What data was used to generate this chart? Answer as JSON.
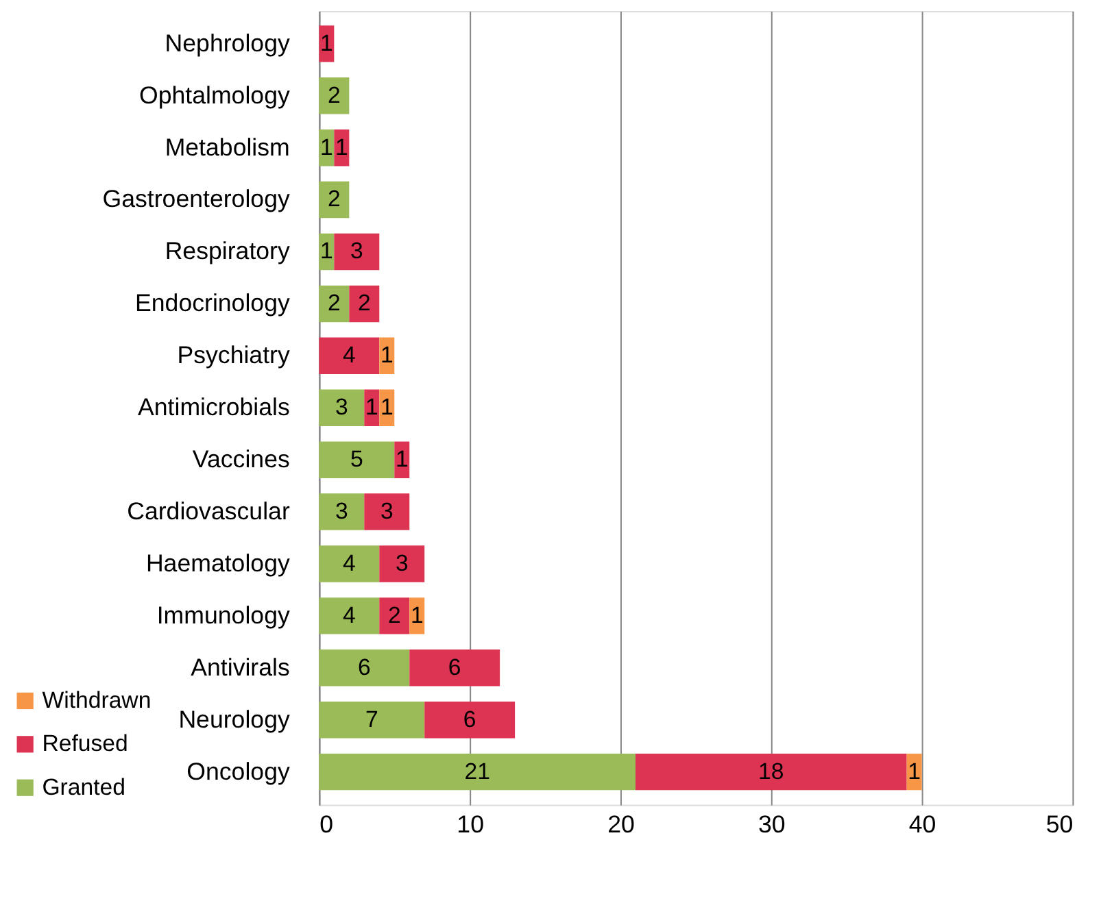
{
  "chart_data": {
    "type": "bar",
    "orientation": "horizontal",
    "stacked": true,
    "data_labels": true,
    "grid": "x",
    "legend": "bottom left",
    "categories": [
      "Nephrology",
      "Ophtalmology",
      "Metabolism",
      "Gastroenterology",
      "Respiratory",
      "Endocrinology",
      "Psychiatry",
      "Antimicrobials",
      "Vaccines",
      "Cardiovascular",
      "Haematology",
      "Immunology",
      "Antivirals",
      "Neurology",
      "Oncology"
    ],
    "series": [
      {
        "name": "Granted",
        "color": "#9bbb59",
        "values": [
          null,
          2,
          1,
          2,
          1,
          2,
          null,
          3,
          5,
          3,
          4,
          4,
          6,
          7,
          21
        ]
      },
      {
        "name": "Refused",
        "color": "#dc3452",
        "values": [
          1,
          null,
          1,
          null,
          3,
          2,
          4,
          1,
          1,
          3,
          3,
          2,
          6,
          6,
          18
        ]
      },
      {
        "name": "Withdrawn",
        "color": "#f79646",
        "values": [
          null,
          null,
          null,
          null,
          null,
          null,
          1,
          1,
          null,
          null,
          null,
          1,
          null,
          null,
          1
        ]
      }
    ],
    "xlim": [
      0,
      50
    ],
    "xticks": [
      0,
      10,
      20,
      30,
      40,
      50
    ]
  }
}
